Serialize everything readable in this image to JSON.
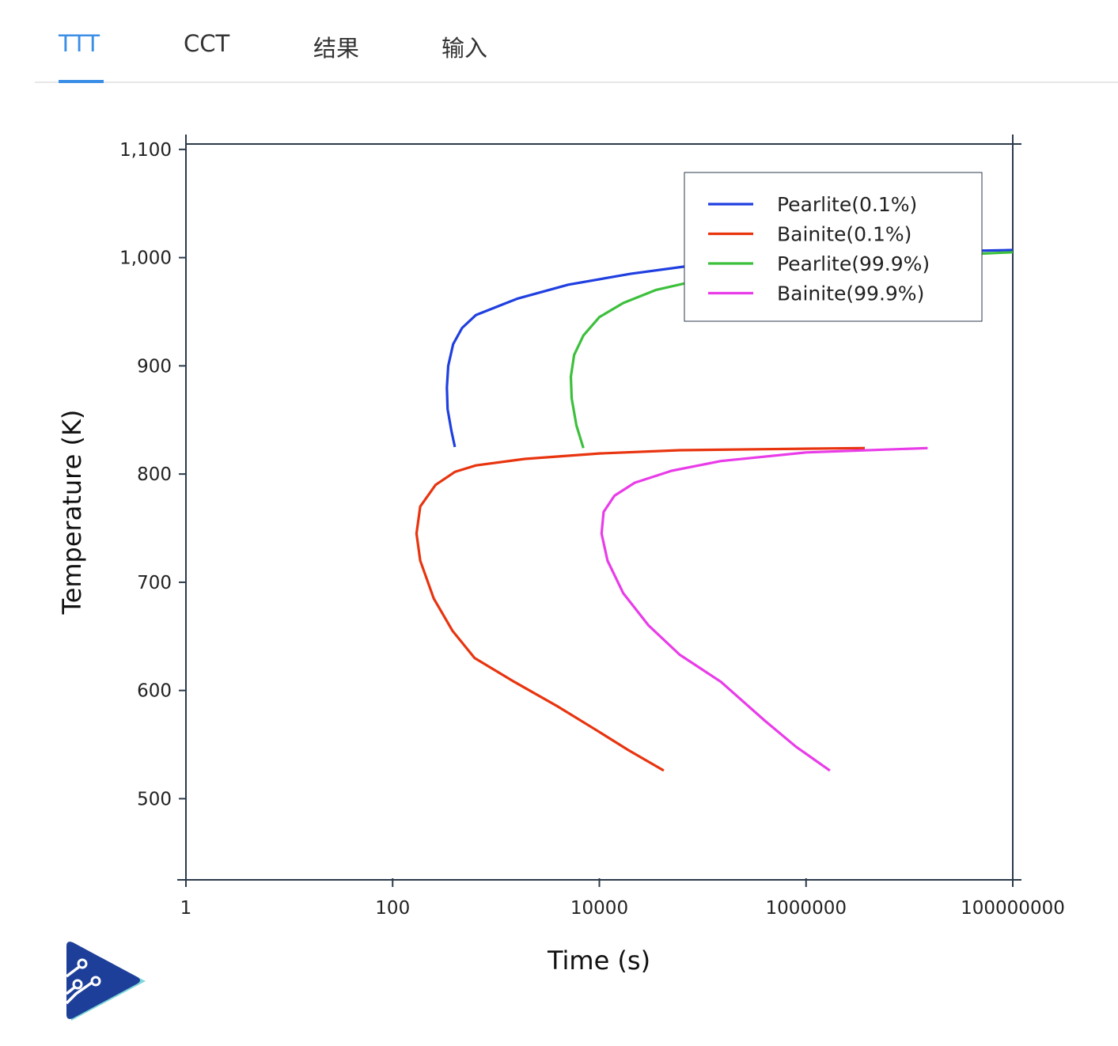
{
  "tabs": [
    {
      "label": "TTT",
      "active": true
    },
    {
      "label": "CCT",
      "active": false
    },
    {
      "label": "结果",
      "active": false
    },
    {
      "label": "输入",
      "active": false
    }
  ],
  "colors": {
    "accent": "#3b8ee6",
    "axis": "#2b3a4a",
    "logo_dark": "#1e3f99",
    "logo_light": "#7dd6d9"
  },
  "icons": {
    "logo": "circuit-play-logo"
  },
  "chart_data": {
    "type": "line",
    "xlabel": "Time (s)",
    "ylabel": "Temperature (K)",
    "xscale": "log",
    "xlim": [
      1,
      100000000
    ],
    "ylim": [
      425,
      1105
    ],
    "x_ticks": [
      1,
      100,
      10000,
      1000000,
      100000000
    ],
    "x_tick_labels": [
      "1",
      "100",
      "10000",
      "1000000",
      "100000000"
    ],
    "y_ticks": [
      500,
      600,
      700,
      800,
      900,
      1000,
      1100
    ],
    "y_tick_labels": [
      "500",
      "600",
      "700",
      "800",
      "900",
      "1,000",
      "1,100"
    ],
    "legend_position": "top-right",
    "grid": false,
    "series": [
      {
        "name": "Pearlite(0.1%)",
        "color": "#1f3fe0",
        "x": [
          400,
          370,
          340,
          335,
          345,
          385,
          470,
          640,
          1600,
          5000,
          20000,
          70000,
          200000,
          1000000,
          5000000,
          30000000,
          100000000
        ],
        "y": [
          825,
          840,
          860,
          880,
          900,
          920,
          935,
          947,
          962,
          975,
          985,
          992,
          997,
          1001,
          1004,
          1006,
          1007
        ]
      },
      {
        "name": "Bainite(0.1%)",
        "color": "#e8340f",
        "x": [
          42000,
          19000,
          9500,
          4000,
          1500,
          620,
          380,
          250,
          185,
          170,
          185,
          260,
          400,
          640,
          1900,
          10000,
          60000,
          400000,
          3700000
        ],
        "y": [
          526,
          545,
          563,
          585,
          608,
          630,
          655,
          685,
          720,
          745,
          770,
          790,
          802,
          808,
          814,
          819,
          822,
          823,
          824
        ]
      },
      {
        "name": "Pearlite(99.9%)",
        "color": "#3cc03c",
        "x": [
          7000,
          6000,
          5400,
          5300,
          5700,
          7000,
          10000,
          17000,
          35000,
          100000,
          300000,
          1000000,
          5000000,
          20000000,
          100000000
        ],
        "y": [
          824,
          845,
          870,
          890,
          910,
          928,
          945,
          958,
          970,
          980,
          988,
          994,
          999,
          1002,
          1005
        ]
      },
      {
        "name": "Bainite(99.9%)",
        "color": "#e93ce9",
        "x": [
          1700000,
          800000,
          400000,
          150000,
          60000,
          30000,
          17000,
          12000,
          10500,
          11000,
          14000,
          22000,
          50000,
          150000,
          1000000,
          15000000
        ],
        "y": [
          526,
          548,
          572,
          608,
          633,
          660,
          690,
          720,
          745,
          765,
          780,
          792,
          803,
          812,
          820,
          824
        ]
      }
    ]
  }
}
